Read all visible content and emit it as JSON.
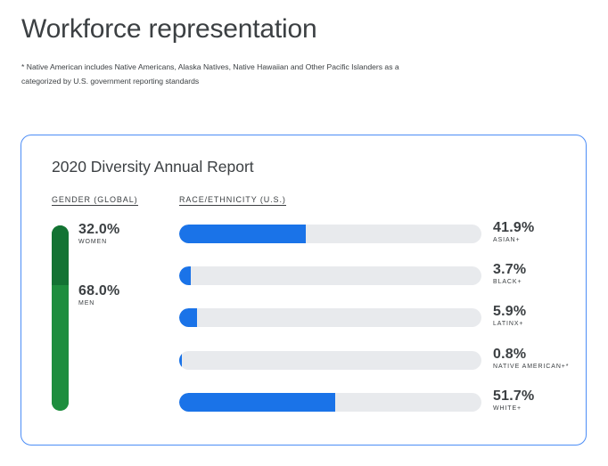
{
  "page": {
    "title": "Workforce representation",
    "footnote": "* Native American includes Native Americans, Alaska Natives, Native Hawaiian and Other Pacific Islanders as a categorized by U.S. government reporting standards"
  },
  "report": {
    "title": "2020 Diversity Annual Report",
    "gender_heading": "GENDER (GLOBAL)",
    "race_heading": "RACE/ETHNICITY (U.S.)",
    "colors": {
      "women": "#137333",
      "men": "#1e8e3e",
      "race_fill": "#1a73e8",
      "track": "#e8eaed",
      "card_border": "#4c8df6"
    },
    "gender": [
      {
        "value": "32.0%",
        "label": "WOMEN",
        "fraction": 0.32
      },
      {
        "value": "68.0%",
        "label": "MEN",
        "fraction": 0.68
      }
    ],
    "race": [
      {
        "value": "41.9%",
        "label": "ASIAN+",
        "fraction": 0.419
      },
      {
        "value": "3.7%",
        "label": "BLACK+",
        "fraction": 0.037
      },
      {
        "value": "5.9%",
        "label": "LATINX+",
        "fraction": 0.059
      },
      {
        "value": "0.8%",
        "label": "NATIVE AMERICAN+*",
        "fraction": 0.008
      },
      {
        "value": "51.7%",
        "label": "WHITE+",
        "fraction": 0.517
      }
    ]
  }
}
